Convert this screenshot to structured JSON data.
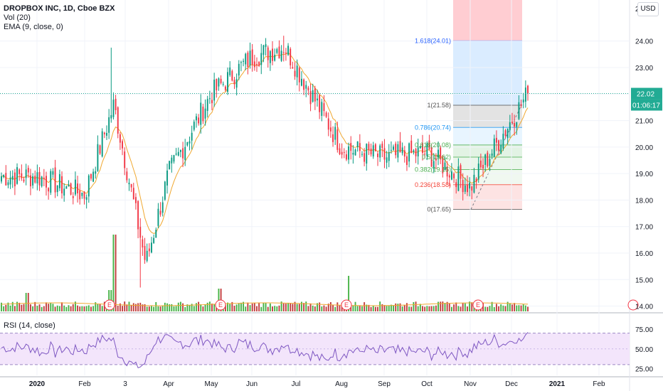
{
  "legend": {
    "symbol": "DROPBOX INC, 1D, Cboe BZX",
    "vol": "Vol (20)",
    "ema": "EMA (9, close, 0)",
    "rsi": "RSI (14, close)"
  },
  "currency": "USD",
  "colors": {
    "up": "#089981",
    "down": "#f23645",
    "vol_up": "#26a626",
    "vol_down": "#b71c1c",
    "ema": "#f0a830",
    "rsi_line": "#7e57c2",
    "rsi_band": "#f3e5fb",
    "price_badge": "#22ab94",
    "fib_top": "#ffcdd2",
    "fib_1618": "#d6eaff",
    "fib_1": "#e0e0e0",
    "fib_786": "#e6f4ff",
    "fib_618": "#dff2e1",
    "fib_5": "#e8f5e9",
    "fib_382": "#eef7ee",
    "fib_236": "#fde0e0",
    "fib_0": "#fde9e9"
  },
  "chart_data": {
    "type": "candlestick",
    "title": "DROPBOX INC, 1D, Cboe BZX",
    "ylim": [
      13.8,
      25.2
    ],
    "y_ticks": [
      "24.00",
      "23.00",
      "22.00",
      "21.00",
      "20.00",
      "19.00",
      "18.00",
      "17.00",
      "16.00",
      "15.00",
      "14.00"
    ],
    "y_top_label": "2",
    "x_labels": [
      "2020",
      "Feb",
      "3",
      "Apr",
      "May",
      "Jun",
      "Jul",
      "Aug",
      "Sep",
      "Oct",
      "Nov",
      "Dec",
      "2021",
      "Feb"
    ],
    "last_price": "22.02",
    "countdown": "01:06:17",
    "earnings_marker": "E",
    "earnings_count": 4,
    "fibonacci": [
      {
        "level": "1.618(24.01)",
        "price": 24.01,
        "label_color": "#2962ff"
      },
      {
        "level": "1(21.58)",
        "price": 21.58,
        "label_color": "#555555"
      },
      {
        "level": "0.786(20.74)",
        "price": 20.74,
        "label_color": "#2196f3"
      },
      {
        "level": "0.618(20.08)",
        "price": 20.08,
        "label_color": "#4caf50"
      },
      {
        "level": "0.5(19.62)",
        "price": 19.62,
        "label_color": "#4caf50"
      },
      {
        "level": "0.382(19.15)",
        "price": 19.15,
        "label_color": "#4caf50"
      },
      {
        "level": "0.236(18.58)",
        "price": 18.58,
        "label_color": "#f44336"
      },
      {
        "level": "0(17.65)",
        "price": 17.65,
        "label_color": "#555555"
      }
    ],
    "key_closes": [
      {
        "date": "2020-01",
        "value": 18.9
      },
      {
        "date": "2020-02",
        "value": 18.2
      },
      {
        "date": "2020-02-20",
        "value": 21.6
      },
      {
        "date": "2020-03",
        "value": 15.6
      },
      {
        "date": "2020-04",
        "value": 19.0
      },
      {
        "date": "2020-05",
        "value": 22.0
      },
      {
        "date": "2020-06",
        "value": 23.4
      },
      {
        "date": "2020-07",
        "value": 23.8
      },
      {
        "date": "2020-08",
        "value": 20.0
      },
      {
        "date": "2020-09",
        "value": 19.6
      },
      {
        "date": "2020-10",
        "value": 19.8
      },
      {
        "date": "2020-11",
        "value": 18.5
      },
      {
        "date": "2020-12",
        "value": 22.02
      }
    ],
    "rsi": {
      "name": "RSI (14, close)",
      "ylim": [
        20,
        85
      ],
      "bands": [
        70,
        30
      ],
      "y_ticks": [
        "75.00",
        "50.00",
        "25.00"
      ]
    }
  }
}
